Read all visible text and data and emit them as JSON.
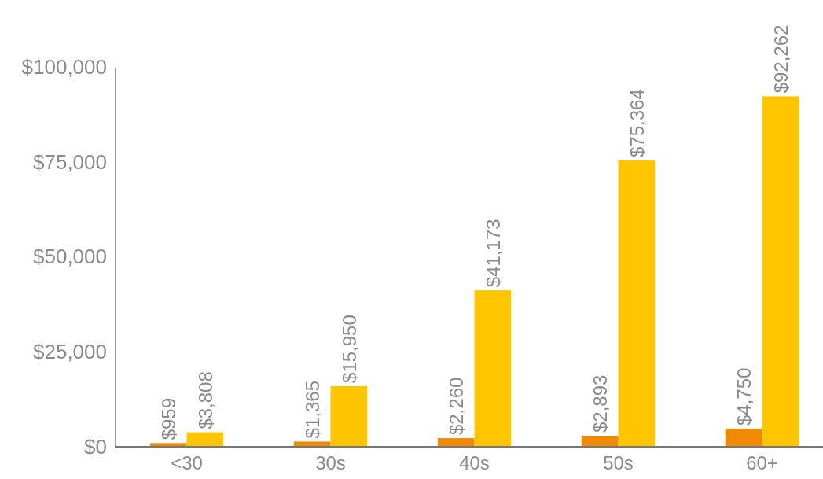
{
  "chart_data": {
    "type": "bar",
    "categories": [
      "<30",
      "30s",
      "40s",
      "50s",
      "60+"
    ],
    "series": [
      {
        "color": "#f28a00",
        "values": [
          959,
          1365,
          2260,
          2893,
          4750
        ],
        "value_labels": [
          "$959",
          "$1,365",
          "$2,260",
          "$2,893",
          "$4,750"
        ]
      },
      {
        "color": "#ffc600",
        "values": [
          3808,
          15950,
          41173,
          75364,
          92262
        ],
        "value_labels": [
          "$3,808",
          "$15,950",
          "$41,173",
          "$75,364",
          "$92,262"
        ]
      }
    ],
    "ylim": [
      0,
      100000
    ],
    "yticks": [
      {
        "value": 0,
        "label": "$0"
      },
      {
        "value": 25000,
        "label": "$25,000"
      },
      {
        "value": 50000,
        "label": "$50,000"
      },
      {
        "value": 75000,
        "label": "$75,000"
      },
      {
        "value": 100000,
        "label": "$100,000"
      }
    ],
    "grid": false
  }
}
